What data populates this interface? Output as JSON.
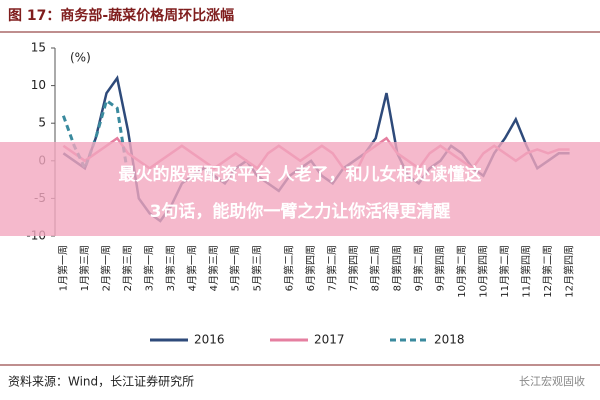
{
  "chart_data": {
    "type": "line",
    "title": "图 17：商务部-蔬菜价格周环比涨幅",
    "y_label": "(%)",
    "source": "资料来源：Wind，长江证券研究所",
    "watermark": "长江宏观固收",
    "overlay": [
      "最火的股票配资平台 人老了，和儿女相处读懂这",
      "3句话，能助你一臂之力让你活得更清醒"
    ],
    "categories": [
      "1月第一周",
      null,
      "1月第三周",
      null,
      "2月第一周",
      null,
      "2月第三周",
      null,
      "3月第一周",
      null,
      "3月第三周",
      null,
      "4月第一周",
      null,
      "4月第三周",
      null,
      "5月第一周",
      null,
      "5月第三周",
      null,
      null,
      "6月第二周",
      null,
      "6月第四周",
      null,
      "7月第二周",
      null,
      "7月第四周",
      null,
      "8月第二周",
      null,
      "8月第四周",
      null,
      "9月第二周",
      null,
      "9月第四周",
      null,
      "10月第二周",
      null,
      "10月第四周",
      null,
      "11月第二周",
      null,
      "11月第四周",
      null,
      "12月第二周",
      null,
      "12月第四周"
    ],
    "series": [
      {
        "name": "2016",
        "color": "#2e4a7a",
        "dashed": false,
        "values": [
          1,
          0,
          -1,
          3,
          9,
          11,
          4,
          -5,
          -7,
          -8,
          -6,
          -3,
          -2,
          -1,
          -2,
          -3,
          -1,
          0,
          -2,
          -3,
          -4,
          -2,
          -1,
          0,
          -2,
          -3,
          -1,
          0,
          1,
          3,
          9,
          1,
          -2,
          -3,
          -1,
          0,
          2,
          1,
          -1,
          -2,
          1,
          3,
          5.5,
          2,
          -1,
          0,
          1,
          1
        ]
      },
      {
        "name": "2017",
        "color": "#e57fa0",
        "dashed": false,
        "values": [
          2,
          1,
          0,
          1,
          2,
          3,
          1,
          0,
          -1,
          0,
          1,
          2,
          1,
          0,
          -1,
          0,
          1,
          0,
          -1,
          1,
          2,
          1,
          0,
          1,
          2,
          1,
          -1,
          -2,
          1,
          2,
          3,
          1,
          0,
          -1,
          1,
          2,
          1,
          0,
          -1,
          1,
          2,
          1,
          0,
          1,
          1.5,
          1,
          1.5,
          1.5
        ]
      },
      {
        "name": "2018",
        "color": "#3a8a9e",
        "dashed": true,
        "values": [
          6,
          2,
          -1,
          3,
          8,
          7,
          -2,
          null,
          null,
          null,
          null,
          null,
          null,
          null,
          null,
          null,
          null,
          null,
          null,
          null,
          null,
          null,
          null,
          null,
          null,
          null,
          null,
          null,
          null,
          null,
          null,
          null,
          null,
          null,
          null,
          null,
          null,
          null,
          null,
          null,
          null,
          null,
          null,
          null,
          null,
          null,
          null,
          null
        ]
      }
    ],
    "ylim": [
      -10,
      15
    ],
    "yticks": [
      -10,
      -5,
      0,
      5,
      10,
      15
    ],
    "grid": false
  }
}
